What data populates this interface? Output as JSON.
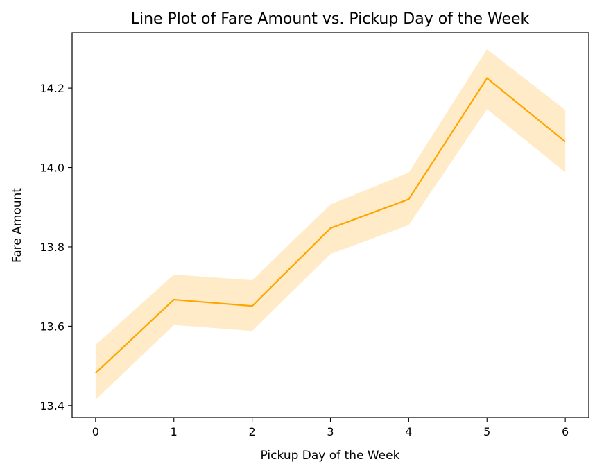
{
  "chart_data": {
    "type": "line",
    "title": "Line Plot of Fare Amount vs. Pickup Day of the Week",
    "xlabel": "Pickup Day of the Week",
    "ylabel": "Fare Amount",
    "x": [
      0,
      1,
      2,
      3,
      4,
      5,
      6
    ],
    "xticks": [
      "0",
      "1",
      "2",
      "3",
      "4",
      "5",
      "6"
    ],
    "yticks": [
      "13.4",
      "13.6",
      "13.8",
      "14.0",
      "14.2"
    ],
    "ytick_values": [
      13.4,
      13.6,
      13.8,
      14.0,
      14.2
    ],
    "xlim": [
      -0.3,
      6.3
    ],
    "ylim": [
      13.37,
      14.34
    ],
    "series": [
      {
        "values": [
          13.482,
          13.667,
          13.651,
          13.847,
          13.92,
          14.225,
          14.065
        ],
        "ci_lower": [
          13.415,
          13.603,
          13.588,
          13.782,
          13.855,
          14.147,
          13.988
        ],
        "ci_upper": [
          13.553,
          13.73,
          13.716,
          13.907,
          13.987,
          14.298,
          14.145
        ],
        "color": "#ffa500",
        "band_color": "#ffa500",
        "band_opacity": 0.22
      }
    ],
    "grid": false,
    "legend": false
  }
}
